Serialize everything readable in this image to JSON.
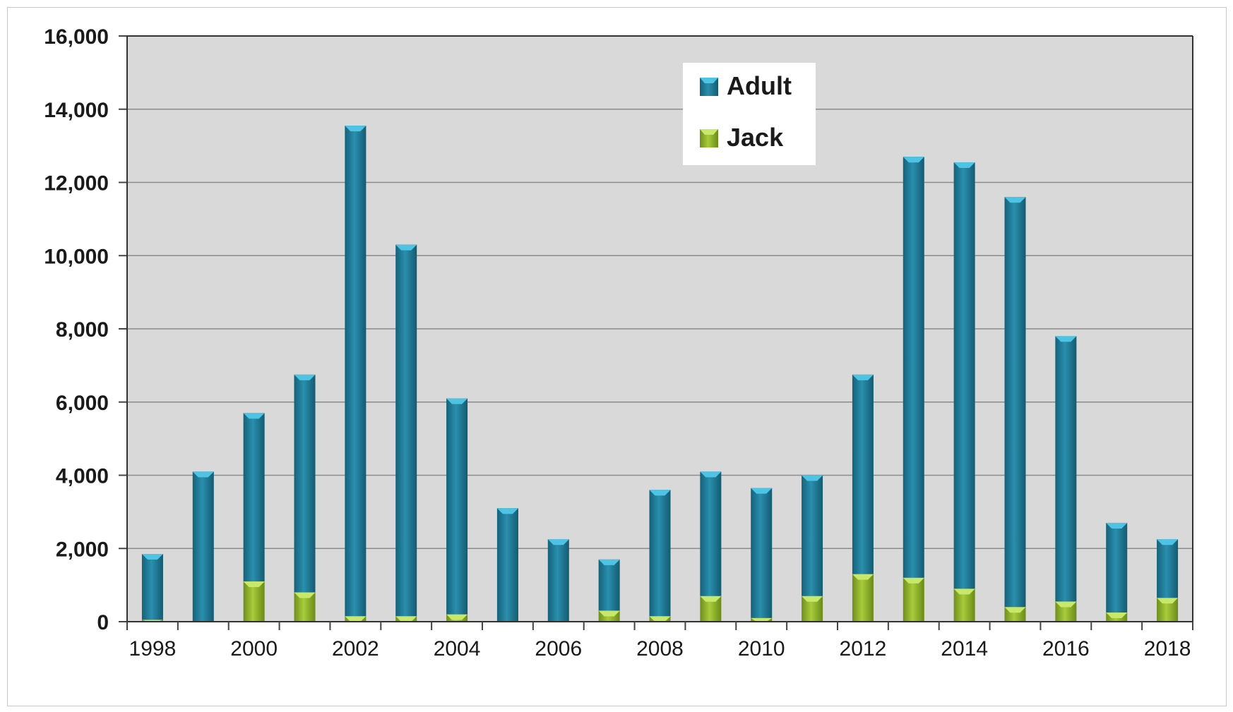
{
  "chart_data": {
    "type": "bar",
    "stacked": true,
    "categories": [
      "1998",
      "1999",
      "2000",
      "2001",
      "2002",
      "2003",
      "2004",
      "2005",
      "2006",
      "2007",
      "2008",
      "2009",
      "2010",
      "2011",
      "2012",
      "2013",
      "2014",
      "2015",
      "2016",
      "2017",
      "2018"
    ],
    "x_tick_labels": [
      "1998",
      "",
      "2000",
      "",
      "2002",
      "",
      "2004",
      "",
      "2006",
      "",
      "2008",
      "",
      "2010",
      "",
      "2012",
      "",
      "2014",
      "",
      "2016",
      "",
      "2018"
    ],
    "series": [
      {
        "name": "Jack",
        "color": "#8db12a",
        "values": [
          50,
          0,
          1100,
          800,
          150,
          150,
          200,
          0,
          0,
          300,
          150,
          700,
          100,
          700,
          1300,
          1200,
          900,
          400,
          550,
          250,
          650
        ]
      },
      {
        "name": "Adult",
        "color": "#1f7d99",
        "values": [
          1800,
          4100,
          4600,
          5950,
          13400,
          10150,
          5900,
          3100,
          2250,
          1400,
          3450,
          3400,
          3550,
          3300,
          5450,
          11500,
          11650,
          11200,
          7250,
          2450,
          1600
        ]
      }
    ],
    "ylim": [
      0,
      16000
    ],
    "y_ticks": [
      0,
      2000,
      4000,
      6000,
      8000,
      10000,
      12000,
      14000,
      16000
    ],
    "y_tick_labels": [
      "0",
      "2,000",
      "4,000",
      "6,000",
      "8,000",
      "10,000",
      "12,000",
      "14,000",
      "16,000"
    ],
    "title": "",
    "xlabel": "",
    "ylabel": "",
    "grid": true,
    "legend": {
      "position": "top-center",
      "order": [
        "Adult",
        "Jack"
      ]
    },
    "plot_background": "#d9d9d9"
  }
}
